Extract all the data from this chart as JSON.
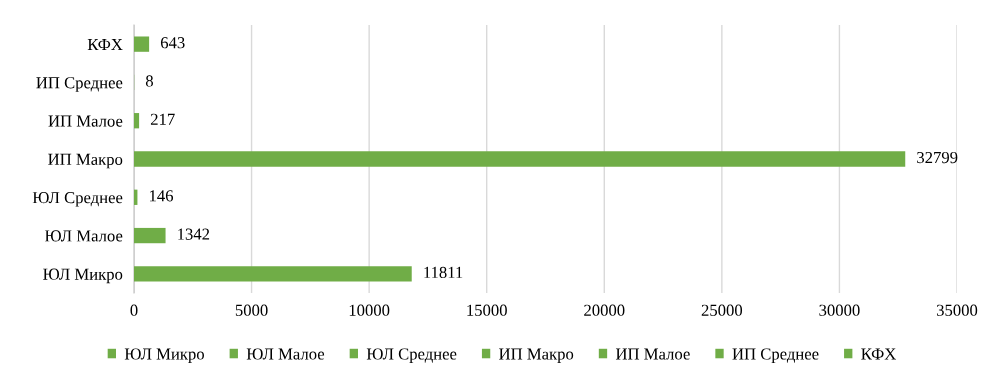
{
  "chart_data": {
    "type": "bar",
    "orientation": "horizontal",
    "categories": [
      "КФХ",
      "ИП Среднее",
      "ИП Малое",
      "ИП Макро",
      "ЮЛ Среднее",
      "ЮЛ Малое",
      "ЮЛ Микро"
    ],
    "series": [
      {
        "name": "ЮЛ Микро",
        "color": "#70ad47",
        "values": [
          null,
          null,
          null,
          null,
          null,
          null,
          11811
        ]
      },
      {
        "name": "ЮЛ Малое",
        "color": "#70ad47",
        "values": [
          null,
          null,
          null,
          null,
          null,
          1342,
          null
        ]
      },
      {
        "name": "ЮЛ Среднее",
        "color": "#70ad47",
        "values": [
          null,
          null,
          null,
          null,
          146,
          null,
          null
        ]
      },
      {
        "name": "ИП Макро",
        "color": "#70ad47",
        "values": [
          null,
          null,
          null,
          32799,
          null,
          null,
          null
        ]
      },
      {
        "name": "ИП Малое",
        "color": "#70ad47",
        "values": [
          null,
          null,
          217,
          null,
          null,
          null,
          null
        ]
      },
      {
        "name": "ИП Среднее",
        "color": "#70ad47",
        "values": [
          null,
          8,
          null,
          null,
          null,
          null,
          null
        ]
      },
      {
        "name": "КФХ",
        "color": "#70ad47",
        "values": [
          643,
          null,
          null,
          null,
          null,
          null,
          null
        ]
      }
    ],
    "xlim": [
      0,
      35000
    ],
    "xticks": [
      0,
      5000,
      10000,
      15000,
      20000,
      25000,
      30000,
      35000
    ],
    "grid": "x",
    "data_labels": true,
    "legend": "bottom"
  }
}
